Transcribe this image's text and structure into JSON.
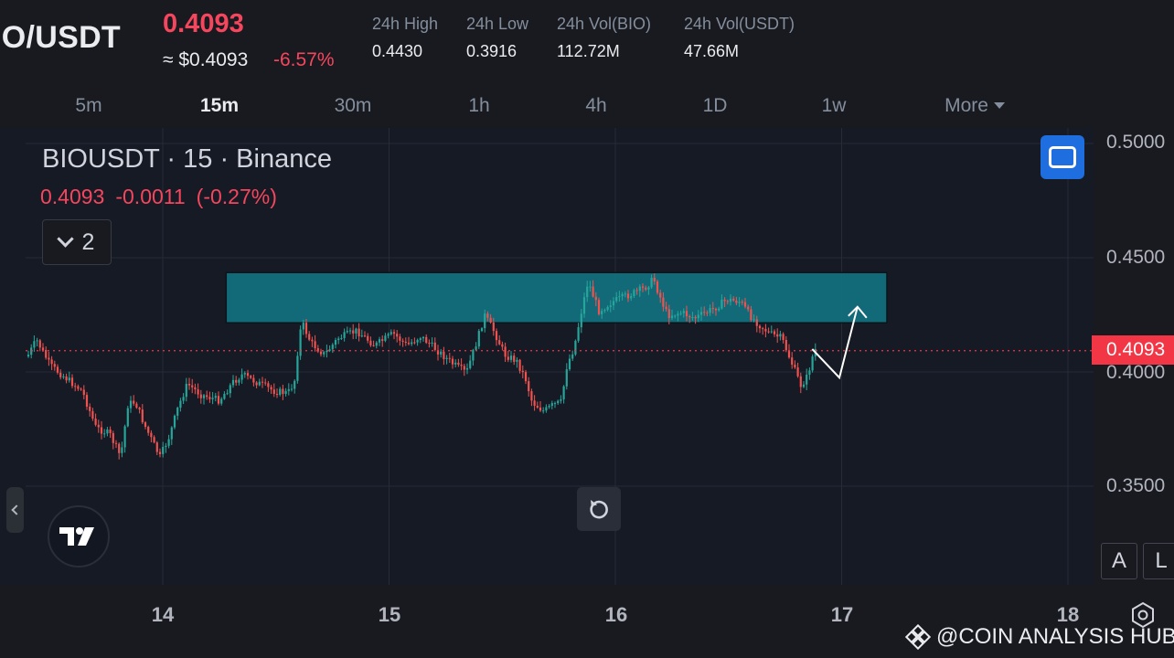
{
  "header": {
    "pair": "IO/USDT",
    "price": "0.4093",
    "usd_price": "≈ $0.4093",
    "change_pct": "-6.57%",
    "stats": [
      {
        "label": "24h High",
        "value": "0.4430"
      },
      {
        "label": "24h Low",
        "value": "0.3916"
      },
      {
        "label": "24h Vol(BIO)",
        "value": "112.72M"
      },
      {
        "label": "24h Vol(USDT)",
        "value": "47.66M"
      }
    ]
  },
  "timeframes": [
    "5m",
    "15m",
    "30m",
    "1h",
    "4h",
    "1D",
    "1w",
    "More"
  ],
  "active_timeframe": "15m",
  "chart": {
    "symbol_line": "BIOUSDT · 15 · Binance",
    "last": "0.4093",
    "change": "-0.0011",
    "change_pct": "(-0.27%)",
    "indicator_count": "2",
    "price_axis": [
      "0.5000",
      "0.4500",
      "0.4000",
      "0.3500"
    ],
    "current_price_tag": "0.4093",
    "date_axis": [
      "14",
      "15",
      "16",
      "17",
      "18"
    ],
    "scale_buttons": [
      "A",
      "L"
    ],
    "zone": {
      "low": 0.4215,
      "high": 0.4435,
      "start_day": 14.28,
      "end_day": 17.2
    },
    "projection": [
      [
        16.87,
        0.41
      ],
      [
        16.99,
        0.3975
      ],
      [
        17.07,
        0.4285
      ]
    ],
    "colors": {
      "up": "#26a69a",
      "down": "#ef5350",
      "zone": "#12707f",
      "accent": "#f23645",
      "button": "#1f6ee0"
    }
  },
  "watermark": "@COIN ANALYSIS HUB",
  "icons": {
    "fullscreen": "fullscreen-icon",
    "reset": "reset-icon",
    "settings": "settings-hex-icon",
    "logo": "tradingview-logo"
  }
}
